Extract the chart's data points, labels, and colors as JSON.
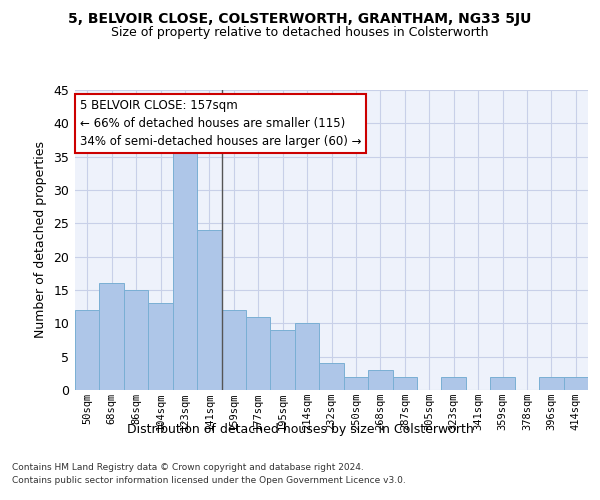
{
  "title1": "5, BELVOIR CLOSE, COLSTERWORTH, GRANTHAM, NG33 5JU",
  "title2": "Size of property relative to detached houses in Colsterworth",
  "xlabel": "Distribution of detached houses by size in Colsterworth",
  "ylabel": "Number of detached properties",
  "categories": [
    "50sqm",
    "68sqm",
    "86sqm",
    "104sqm",
    "123sqm",
    "141sqm",
    "159sqm",
    "177sqm",
    "195sqm",
    "214sqm",
    "232sqm",
    "250sqm",
    "268sqm",
    "287sqm",
    "305sqm",
    "323sqm",
    "341sqm",
    "359sqm",
    "378sqm",
    "396sqm",
    "414sqm"
  ],
  "values": [
    12,
    16,
    15,
    13,
    36,
    24,
    12,
    11,
    9,
    10,
    4,
    2,
    3,
    2,
    0,
    2,
    0,
    2,
    0,
    2,
    2
  ],
  "bar_color": "#aec6e8",
  "bar_edge_color": "#7aafd4",
  "background_color": "#eef2fb",
  "grid_color": "#c8d0e8",
  "annotation_text": "5 BELVOIR CLOSE: 157sqm\n← 66% of detached houses are smaller (115)\n34% of semi-detached houses are larger (60) →",
  "annotation_box_color": "#ffffff",
  "annotation_border_color": "#cc0000",
  "property_line_x": 5.5,
  "ylim": [
    0,
    45
  ],
  "yticks": [
    0,
    5,
    10,
    15,
    20,
    25,
    30,
    35,
    40,
    45
  ],
  "footnote1": "Contains HM Land Registry data © Crown copyright and database right 2024.",
  "footnote2": "Contains public sector information licensed under the Open Government Licence v3.0."
}
